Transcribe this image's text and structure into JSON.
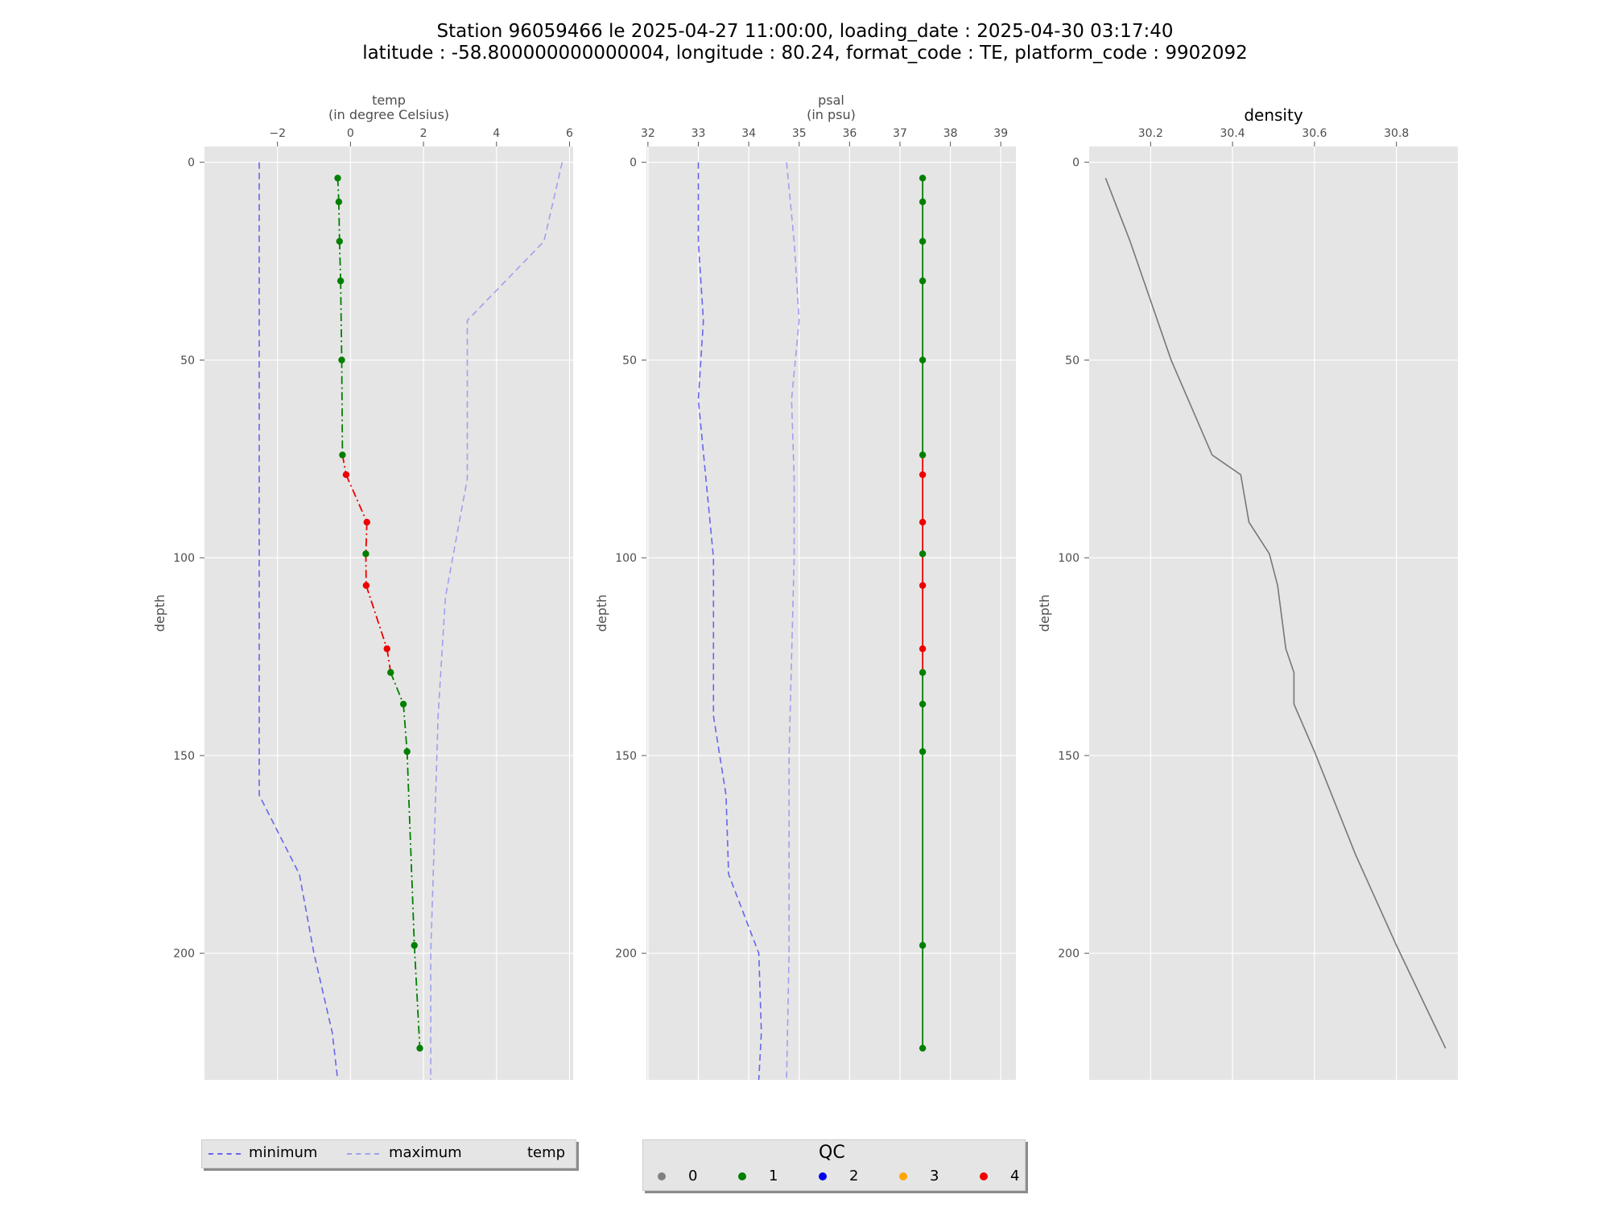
{
  "title_lines": [
    "Station 96059466 le 2025-04-27 11:00:00, loading_date : 2025-04-30 03:17:40",
    "latitude : -58.800000000000004, longitude : 80.24, format_code : TE, platform_code : 9902092"
  ],
  "chart_data": [
    {
      "type": "line",
      "xlabel": "temp\n(in degree Celsius)",
      "ylabel": "depth",
      "xlim": [
        -4.0,
        6.1
      ],
      "ylim": [
        232,
        -4
      ],
      "y_inverted": true,
      "xaxis_position": "top",
      "x_ticks": [
        -2,
        0,
        2,
        4,
        6
      ],
      "x_tick_labels": [
        "−2",
        "0",
        "2",
        "4",
        "6"
      ],
      "y_ticks": [
        0,
        50,
        100,
        150,
        200
      ],
      "grid": true,
      "series": [
        {
          "name": "minimum",
          "style": "dashed",
          "color": "#6666ee",
          "points": [
            [
              -2.5,
              0
            ],
            [
              -2.5,
              50
            ],
            [
              -2.5,
              100
            ],
            [
              -2.5,
              150
            ],
            [
              -2.5,
              160
            ],
            [
              -1.4,
              180
            ],
            [
              -1.0,
              200
            ],
            [
              -0.5,
              220
            ],
            [
              -0.35,
              232
            ]
          ]
        },
        {
          "name": "maximum",
          "style": "dashed",
          "color": "#a0a0ee",
          "points": [
            [
              5.8,
              0
            ],
            [
              5.3,
              20
            ],
            [
              3.2,
              40
            ],
            [
              3.2,
              80
            ],
            [
              2.6,
              110
            ],
            [
              2.4,
              140
            ],
            [
              2.3,
              170
            ],
            [
              2.2,
              200
            ],
            [
              2.2,
              232
            ]
          ]
        },
        {
          "name": "temp",
          "style": "dashdot",
          "points": [
            [
              -0.35,
              4,
              1
            ],
            [
              -0.32,
              10,
              1
            ],
            [
              -0.3,
              20,
              1
            ],
            [
              -0.27,
              30,
              1
            ],
            [
              -0.24,
              50,
              1
            ],
            [
              -0.22,
              74,
              1
            ],
            [
              -0.12,
              79,
              4
            ],
            [
              0.45,
              91,
              4
            ],
            [
              0.42,
              99,
              1
            ],
            [
              0.43,
              107,
              4
            ],
            [
              1.0,
              123,
              4
            ],
            [
              1.1,
              129,
              1
            ],
            [
              1.45,
              137,
              1
            ],
            [
              1.55,
              149,
              1
            ],
            [
              1.75,
              198,
              1
            ],
            [
              1.9,
              224,
              1
            ]
          ]
        }
      ]
    },
    {
      "type": "line",
      "xlabel": "psal\n(in psu)",
      "xlim": [
        31.97,
        39.3
      ],
      "ylim": [
        232,
        -4
      ],
      "y_inverted": true,
      "xaxis_position": "top",
      "x_ticks": [
        32,
        33,
        34,
        35,
        36,
        37,
        38,
        39
      ],
      "x_tick_labels": [
        "32",
        "33",
        "34",
        "35",
        "36",
        "37",
        "38",
        "39"
      ],
      "y_ticks": [
        0,
        50,
        100,
        150,
        200
      ],
      "ylabel": "depth",
      "grid": true,
      "series": [
        {
          "name": "minimum",
          "style": "dashed",
          "color": "#6666ee",
          "points": [
            [
              33.0,
              0
            ],
            [
              33.0,
              20
            ],
            [
              33.1,
              40
            ],
            [
              33.0,
              60
            ],
            [
              33.15,
              80
            ],
            [
              33.3,
              100
            ],
            [
              33.3,
              140
            ],
            [
              33.55,
              160
            ],
            [
              33.6,
              180
            ],
            [
              34.2,
              200
            ],
            [
              34.25,
              220
            ],
            [
              34.2,
              232
            ]
          ]
        },
        {
          "name": "maximum",
          "style": "dashed",
          "color": "#a0a0ee",
          "points": [
            [
              34.75,
              0
            ],
            [
              34.9,
              20
            ],
            [
              35.0,
              40
            ],
            [
              34.85,
              60
            ],
            [
              34.9,
              80
            ],
            [
              34.9,
              100
            ],
            [
              34.8,
              150
            ],
            [
              34.8,
              200
            ],
            [
              34.75,
              232
            ]
          ]
        },
        {
          "name": "psal",
          "points": [
            [
              37.45,
              4,
              1
            ],
            [
              37.45,
              10,
              1
            ],
            [
              37.45,
              20,
              1
            ],
            [
              37.45,
              30,
              1
            ],
            [
              37.45,
              50,
              1
            ],
            [
              37.45,
              74,
              1
            ],
            [
              37.45,
              79,
              4
            ],
            [
              37.45,
              91,
              4
            ],
            [
              37.45,
              99,
              1
            ],
            [
              37.45,
              107,
              4
            ],
            [
              37.45,
              123,
              4
            ],
            [
              37.45,
              129,
              1
            ],
            [
              37.45,
              137,
              1
            ],
            [
              37.45,
              149,
              1
            ],
            [
              37.45,
              198,
              1
            ],
            [
              37.45,
              224,
              1
            ]
          ]
        }
      ]
    },
    {
      "type": "line",
      "title": "density",
      "ylabel": "depth",
      "xlim": [
        30.05,
        30.95
      ],
      "ylim": [
        232,
        -4
      ],
      "y_inverted": true,
      "xaxis_position": "top",
      "x_ticks": [
        30.2,
        30.4,
        30.6,
        30.8
      ],
      "x_tick_labels": [
        "30.2",
        "30.4",
        "30.6",
        "30.8"
      ],
      "y_ticks": [
        0,
        50,
        100,
        150,
        200
      ],
      "grid": true,
      "series": [
        {
          "name": "density",
          "color": "#777777",
          "points": [
            [
              30.09,
              4
            ],
            [
              30.15,
              20
            ],
            [
              30.25,
              50
            ],
            [
              30.35,
              74
            ],
            [
              30.42,
              79
            ],
            [
              30.44,
              91
            ],
            [
              30.49,
              99
            ],
            [
              30.51,
              107
            ],
            [
              30.53,
              123
            ],
            [
              30.55,
              129
            ],
            [
              30.55,
              137
            ],
            [
              30.6,
              149
            ],
            [
              30.7,
              175
            ],
            [
              30.8,
              198
            ],
            [
              30.92,
              224
            ]
          ]
        }
      ]
    }
  ],
  "legend_main": [
    {
      "label": "minimum",
      "style": "dashed",
      "color": "#6666ee"
    },
    {
      "label": "maximum",
      "style": "dashed",
      "color": "#a0a0ee"
    },
    {
      "label": "temp",
      "style": "dashdot",
      "color": "#e8161b"
    }
  ],
  "legend_qc": {
    "title": "QC",
    "items": [
      {
        "label": "0",
        "color": "#808080"
      },
      {
        "label": "1",
        "color": "#007f00"
      },
      {
        "label": "2",
        "color": "#0000ee"
      },
      {
        "label": "3",
        "color": "#ffa500"
      },
      {
        "label": "4",
        "color": "#ee0000"
      }
    ]
  }
}
